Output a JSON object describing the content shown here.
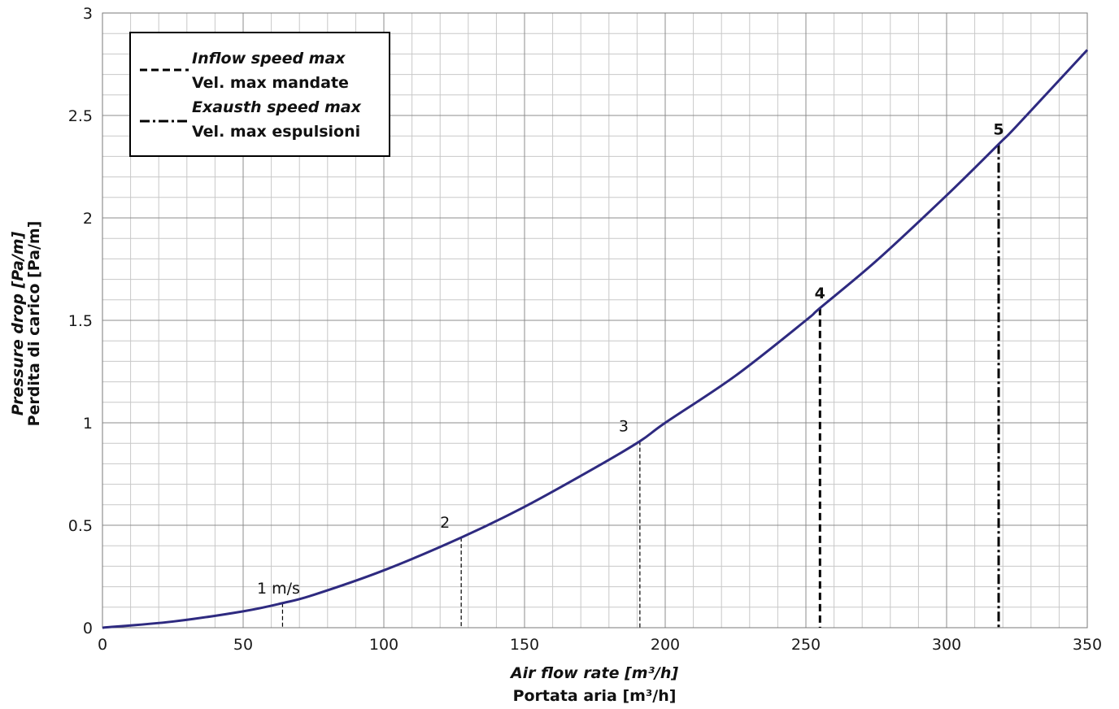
{
  "chart_data": {
    "type": "line",
    "xlabel": "Air flow rate [m³/h]",
    "xlabel_2": "Portata aria [m³/h]",
    "ylabel": "Pressure drop [Pa/m]",
    "ylabel_2": "Perdita di carico [Pa/m]",
    "xlim": [
      0,
      350
    ],
    "ylim": [
      0,
      3
    ],
    "x_ticks": [
      "0",
      "50",
      "100",
      "150",
      "200",
      "250",
      "300",
      "350"
    ],
    "y_ticks": [
      "0",
      "0.5",
      "1",
      "1.5",
      "2",
      "2.5",
      "3"
    ],
    "grid": true,
    "series": [
      {
        "x": [
          0,
          25,
          50,
          64,
          75,
          100,
          127.5,
          150,
          175,
          191,
          200,
          225,
          250,
          255,
          275,
          300,
          318.5,
          325,
          350
        ],
        "y": [
          0,
          0.03,
          0.08,
          0.12,
          0.16,
          0.28,
          0.44,
          0.59,
          0.78,
          0.91,
          1.0,
          1.23,
          1.5,
          1.56,
          1.79,
          2.11,
          2.36,
          2.45,
          2.82
        ],
        "color": "#2e2a80"
      }
    ],
    "markers": [
      {
        "label": "1 m/s",
        "x": 64,
        "y": 0.12,
        "style": "thin-dashed"
      },
      {
        "label": "2",
        "x": 127.5,
        "y": 0.44,
        "style": "thin-dashed"
      },
      {
        "label": "3",
        "x": 191,
        "y": 0.91,
        "style": "thin-dashed"
      },
      {
        "label": "4",
        "x": 255,
        "y": 1.56,
        "style": "dashed"
      },
      {
        "label": "5",
        "x": 318.5,
        "y": 2.36,
        "style": "dash-dot"
      }
    ],
    "legend": {
      "position": "top-left",
      "entries": [
        {
          "line1": "Inflow speed max",
          "line2": "Vel. max mandate",
          "style": "dashed"
        },
        {
          "line1": "Exausth speed max",
          "line2": "Vel. max espulsioni",
          "style": "dash-dot"
        }
      ]
    }
  }
}
